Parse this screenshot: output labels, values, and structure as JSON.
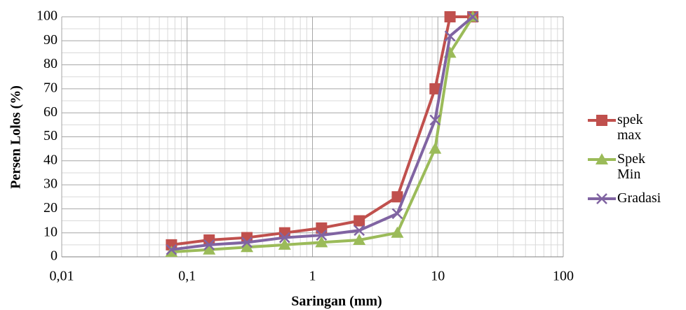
{
  "chart_data": {
    "type": "line",
    "x_label": "Saringan (mm)",
    "y_label": "Persen Lolos (%)",
    "x": [
      0.075,
      0.15,
      0.3,
      0.6,
      1.18,
      2.36,
      4.75,
      9.5,
      12.5,
      19
    ],
    "series": [
      {
        "name": "spek max",
        "color": "#c0504d",
        "marker": "square",
        "values": [
          5,
          7,
          8,
          10,
          12,
          15,
          25,
          70,
          100,
          100
        ]
      },
      {
        "name": "Spek Min",
        "color": "#9bbb59",
        "marker": "triangle",
        "values": [
          2,
          3,
          4,
          5,
          6,
          7,
          10,
          45,
          85,
          100
        ]
      },
      {
        "name": "Gradasi",
        "color": "#8064a2",
        "marker": "x",
        "values": [
          3,
          5,
          6,
          8,
          9,
          11,
          18,
          57,
          92,
          100
        ]
      }
    ],
    "xscale": "log",
    "xlim": [
      0.01,
      100
    ],
    "xticks": [
      {
        "value": 0.01,
        "label": "0,01"
      },
      {
        "value": 0.1,
        "label": "0,1"
      },
      1,
      10,
      100
    ],
    "ylim": [
      0,
      100
    ],
    "yticks": [
      0,
      10,
      20,
      30,
      40,
      50,
      60,
      70,
      80,
      90,
      100
    ],
    "grid": true,
    "minor_grid": true,
    "legend": "right"
  }
}
